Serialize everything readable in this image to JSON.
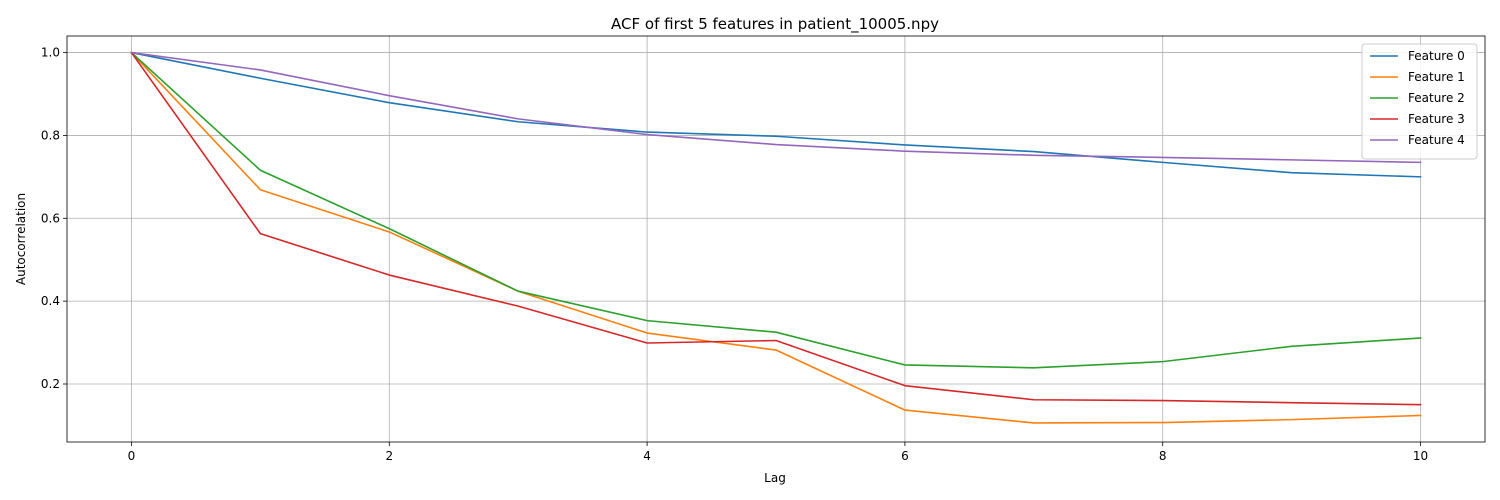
{
  "chart_data": {
    "type": "line",
    "title": "ACF of first 5 features in patient_10005.npy",
    "xlabel": "Lag",
    "ylabel": "Autocorrelation",
    "xlim": [
      -0.5,
      10.5
    ],
    "ylim": [
      0.06,
      1.04
    ],
    "x_ticks": [
      0,
      2,
      4,
      6,
      8,
      10
    ],
    "y_ticks": [
      0.2,
      0.4,
      0.6,
      0.8,
      1.0
    ],
    "grid": true,
    "legend_position": "top-right",
    "x": [
      0,
      1,
      2,
      3,
      4,
      5,
      6,
      7,
      8,
      9,
      10
    ],
    "series": [
      {
        "name": "Feature 0",
        "color": "#1f77b4",
        "values": [
          1.0,
          0.938,
          0.879,
          0.833,
          0.808,
          0.798,
          0.777,
          0.761,
          0.735,
          0.71,
          0.7
        ]
      },
      {
        "name": "Feature 1",
        "color": "#ff7f0e",
        "values": [
          1.0,
          0.669,
          0.567,
          0.424,
          0.323,
          0.282,
          0.137,
          0.106,
          0.107,
          0.114,
          0.124
        ]
      },
      {
        "name": "Feature 2",
        "color": "#2ca02c",
        "values": [
          1.0,
          0.716,
          0.575,
          0.424,
          0.353,
          0.325,
          0.246,
          0.239,
          0.254,
          0.291,
          0.311
        ]
      },
      {
        "name": "Feature 3",
        "color": "#d62728",
        "values": [
          1.0,
          0.563,
          0.463,
          0.388,
          0.299,
          0.305,
          0.196,
          0.162,
          0.16,
          0.155,
          0.15
        ]
      },
      {
        "name": "Feature 4",
        "color": "#9467bd",
        "values": [
          1.0,
          0.958,
          0.896,
          0.84,
          0.802,
          0.778,
          0.762,
          0.752,
          0.747,
          0.741,
          0.735
        ]
      }
    ]
  }
}
